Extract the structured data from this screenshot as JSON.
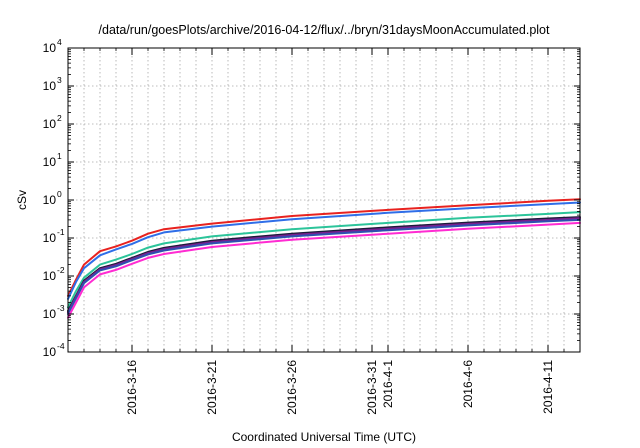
{
  "chart_data": {
    "type": "line",
    "title": "/data/run/goesPlots/archive/2016-04-12/flux/../bryn/31daysMoonAccumulated.plot",
    "xlabel": "Coordinated Universal Time (UTC)",
    "ylabel": "cSv",
    "yscale": "log",
    "ylim": [
      0.0001,
      10000
    ],
    "xlim": [
      "2016-03-12",
      "2016-04-13"
    ],
    "grid": true,
    "legend": "none",
    "y_ticks": [
      {
        "base": "10",
        "exp": "-4"
      },
      {
        "base": "10",
        "exp": "-3"
      },
      {
        "base": "10",
        "exp": "-2"
      },
      {
        "base": "10",
        "exp": "-1"
      },
      {
        "base": "10",
        "exp": "0"
      },
      {
        "base": "10",
        "exp": "1"
      },
      {
        "base": "10",
        "exp": "2"
      },
      {
        "base": "10",
        "exp": "3"
      },
      {
        "base": "10",
        "exp": "4"
      }
    ],
    "x_ticks": [
      {
        "date": "2016-03-16",
        "label": "2016-3-16"
      },
      {
        "date": "2016-03-21",
        "label": "2016-3-21"
      },
      {
        "date": "2016-03-26",
        "label": "2016-3-26"
      },
      {
        "date": "2016-03-31",
        "label": "2016-3-31"
      },
      {
        "date": "2016-04-01",
        "label": "2016-4-1"
      },
      {
        "date": "2016-04-06",
        "label": "2016-4-6"
      },
      {
        "date": "2016-04-11",
        "label": "2016-4-11"
      }
    ],
    "series": [
      {
        "color": "#e8221f",
        "x": [
          "2016-03-12",
          "2016-03-12T12:00",
          "2016-03-13",
          "2016-03-14",
          "2016-03-15",
          "2016-03-16",
          "2016-03-17",
          "2016-03-18",
          "2016-03-21",
          "2016-03-26",
          "2016-04-01",
          "2016-04-06",
          "2016-04-11",
          "2016-04-13"
        ],
        "values": [
          0.003,
          0.008,
          0.02,
          0.045,
          0.06,
          0.085,
          0.13,
          0.17,
          0.24,
          0.38,
          0.55,
          0.73,
          0.95,
          1.05
        ]
      },
      {
        "color": "#2f6ee8",
        "x": [
          "2016-03-12",
          "2016-03-12T12:00",
          "2016-03-13",
          "2016-03-14",
          "2016-03-15",
          "2016-03-16",
          "2016-03-17",
          "2016-03-18",
          "2016-03-21",
          "2016-03-26",
          "2016-04-01",
          "2016-04-06",
          "2016-04-11",
          "2016-04-13"
        ],
        "values": [
          0.0025,
          0.007,
          0.016,
          0.035,
          0.05,
          0.07,
          0.105,
          0.14,
          0.2,
          0.31,
          0.46,
          0.61,
          0.78,
          0.86
        ]
      },
      {
        "color": "#2cc49a",
        "x": [
          "2016-03-12",
          "2016-03-12T12:00",
          "2016-03-13",
          "2016-03-14",
          "2016-03-15",
          "2016-03-16",
          "2016-03-17",
          "2016-03-18",
          "2016-03-21",
          "2016-03-26",
          "2016-04-01",
          "2016-04-06",
          "2016-04-11",
          "2016-04-13"
        ],
        "values": [
          0.0015,
          0.004,
          0.009,
          0.02,
          0.027,
          0.038,
          0.056,
          0.072,
          0.11,
          0.17,
          0.25,
          0.34,
          0.43,
          0.48
        ]
      },
      {
        "color": "#1b1b3a",
        "x": [
          "2016-03-12",
          "2016-03-12T12:00",
          "2016-03-13",
          "2016-03-14",
          "2016-03-15",
          "2016-03-16",
          "2016-03-17",
          "2016-03-18",
          "2016-03-21",
          "2016-03-26",
          "2016-04-01",
          "2016-04-06",
          "2016-04-11",
          "2016-04-13"
        ],
        "values": [
          0.0012,
          0.003,
          0.0075,
          0.016,
          0.021,
          0.03,
          0.043,
          0.055,
          0.085,
          0.13,
          0.19,
          0.255,
          0.325,
          0.355
        ]
      },
      {
        "color": "#7a1f8f",
        "x": [
          "2016-03-12",
          "2016-03-12T12:00",
          "2016-03-13",
          "2016-03-14",
          "2016-03-15",
          "2016-03-16",
          "2016-03-17",
          "2016-03-18",
          "2016-03-21",
          "2016-03-26",
          "2016-04-01",
          "2016-04-06",
          "2016-04-11",
          "2016-04-13"
        ],
        "values": [
          0.0011,
          0.0028,
          0.007,
          0.015,
          0.0195,
          0.028,
          0.04,
          0.051,
          0.078,
          0.12,
          0.175,
          0.235,
          0.3,
          0.33
        ]
      },
      {
        "color": "#2f4fb0",
        "x": [
          "2016-03-12",
          "2016-03-12T12:00",
          "2016-03-13",
          "2016-03-14",
          "2016-03-15",
          "2016-03-16",
          "2016-03-17",
          "2016-03-18",
          "2016-03-21",
          "2016-03-26",
          "2016-04-01",
          "2016-04-06",
          "2016-04-11",
          "2016-04-13"
        ],
        "values": [
          0.001,
          0.0026,
          0.0065,
          0.014,
          0.018,
          0.026,
          0.037,
          0.047,
          0.072,
          0.11,
          0.16,
          0.215,
          0.275,
          0.3
        ]
      },
      {
        "color": "#ff2bd2",
        "x": [
          "2016-03-12",
          "2016-03-12T12:00",
          "2016-03-13",
          "2016-03-14",
          "2016-03-15",
          "2016-03-16",
          "2016-03-17",
          "2016-03-18",
          "2016-03-21",
          "2016-03-26",
          "2016-04-01",
          "2016-04-06",
          "2016-04-11",
          "2016-04-13"
        ],
        "values": [
          0.0008,
          0.002,
          0.005,
          0.011,
          0.0145,
          0.021,
          0.03,
          0.038,
          0.058,
          0.09,
          0.13,
          0.175,
          0.225,
          0.25
        ]
      }
    ]
  }
}
